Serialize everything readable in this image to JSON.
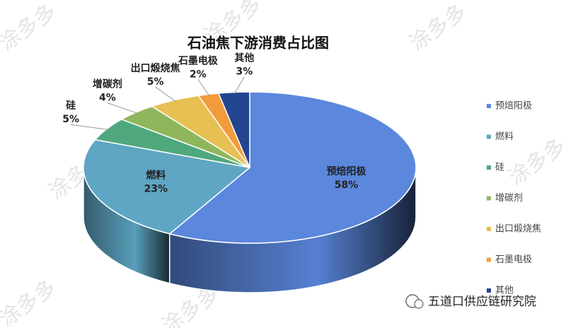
{
  "chart_data": {
    "type": "pie3d",
    "title": "石油焦下游消费占比图",
    "categories": [
      "预焙阳极",
      "燃料",
      "硅",
      "增碳剂",
      "出口煅烧焦",
      "石墨电极",
      "其他"
    ],
    "values": [
      58,
      23,
      5,
      4,
      5,
      2,
      3
    ],
    "value_labels": [
      "58%",
      "23%",
      "5%",
      "4%",
      "5%",
      "2%",
      "3%"
    ],
    "colors": [
      "#5b87dd",
      "#5ea6c4",
      "#4fa87d",
      "#8fb65d",
      "#e6c052",
      "#f19b3c",
      "#24458f"
    ],
    "legend": "right",
    "watermark": "涂多多",
    "source": "五道口供应链研究院"
  }
}
